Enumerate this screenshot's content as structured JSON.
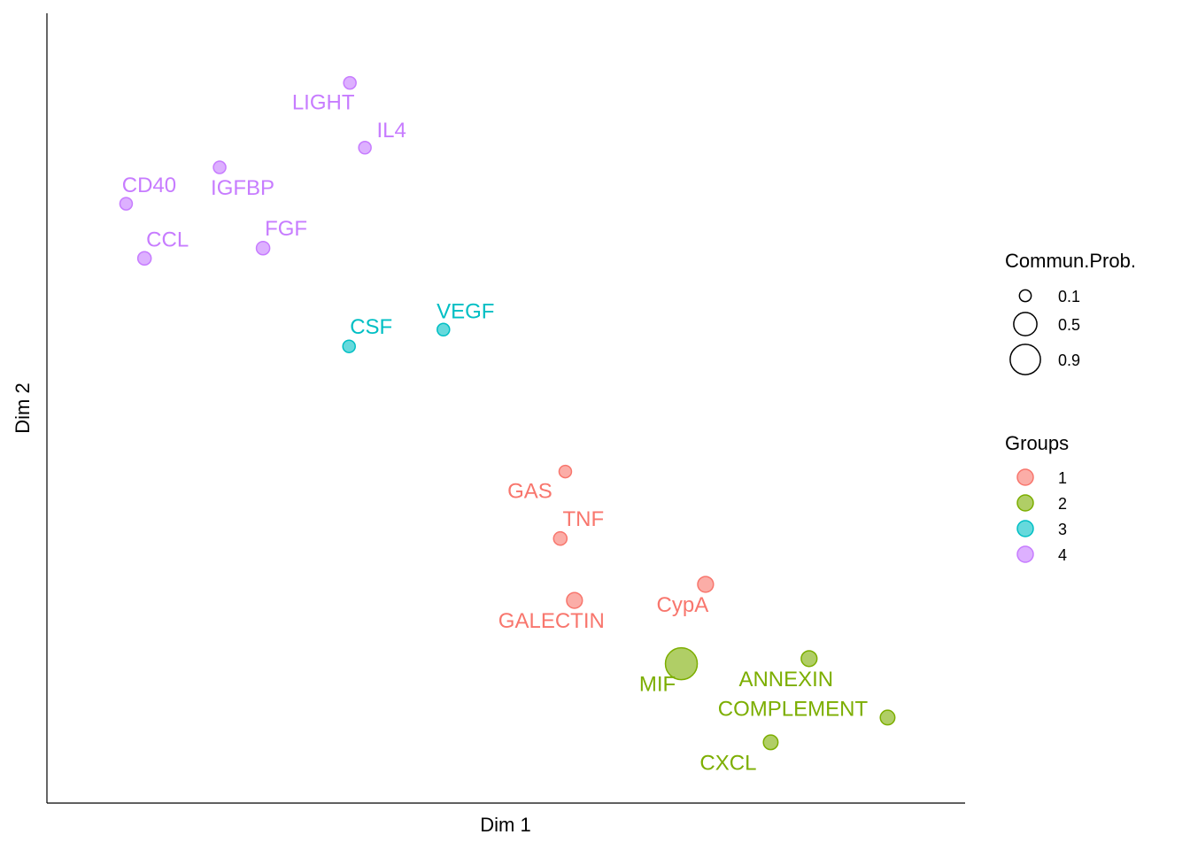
{
  "chart_data": {
    "type": "scatter",
    "xlabel": "Dim 1",
    "ylabel": "Dim 2",
    "xlim": [
      0,
      10
    ],
    "ylim": [
      0,
      10
    ],
    "grid": false,
    "legend_placement": "right",
    "groups": [
      {
        "name": "1",
        "color": "#F8766D"
      },
      {
        "name": "2",
        "color": "#7CAE00"
      },
      {
        "name": "3",
        "color": "#00BFC4"
      },
      {
        "name": "4",
        "color": "#C77CFF"
      }
    ],
    "size_legend": {
      "title": "Commun.Prob.",
      "values": [
        0.1,
        0.5,
        0.9
      ]
    },
    "color_legend": {
      "title": "Groups"
    },
    "points": [
      {
        "label": "LIGHT",
        "x": 3.13,
        "y": 9.53,
        "group": "4",
        "prob": 0.1,
        "lx": -30,
        "ly": 30
      },
      {
        "label": "IL4",
        "x": 3.31,
        "y": 8.64,
        "group": "4",
        "prob": 0.1,
        "lx": 30,
        "ly": -12
      },
      {
        "label": "IGFBP",
        "x": 1.57,
        "y": 8.37,
        "group": "4",
        "prob": 0.1,
        "lx": 26,
        "ly": 31
      },
      {
        "label": "CD40",
        "x": 0.45,
        "y": 7.87,
        "group": "4",
        "prob": 0.1,
        "lx": 26,
        "ly": -13
      },
      {
        "label": "CCL",
        "x": 0.67,
        "y": 7.12,
        "group": "4",
        "prob": 0.12,
        "lx": 26,
        "ly": -13
      },
      {
        "label": "FGF",
        "x": 2.09,
        "y": 7.26,
        "group": "4",
        "prob": 0.12,
        "lx": 26,
        "ly": -14
      },
      {
        "label": "CSF",
        "x": 3.12,
        "y": 5.91,
        "group": "3",
        "prob": 0.1,
        "lx": 25,
        "ly": -14
      },
      {
        "label": "VEGF",
        "x": 4.25,
        "y": 6.14,
        "group": "3",
        "prob": 0.1,
        "lx": 25,
        "ly": -13
      },
      {
        "label": "GAS",
        "x": 5.71,
        "y": 4.19,
        "group": "1",
        "prob": 0.1,
        "lx": -40,
        "ly": 30
      },
      {
        "label": "TNF",
        "x": 5.65,
        "y": 3.27,
        "group": "1",
        "prob": 0.12,
        "lx": 26,
        "ly": -14
      },
      {
        "label": "GALECTIN",
        "x": 5.82,
        "y": 2.42,
        "group": "1",
        "prob": 0.18,
        "lx": -26,
        "ly": 31
      },
      {
        "label": "CypA",
        "x": 7.39,
        "y": 2.64,
        "group": "1",
        "prob": 0.18,
        "lx": -26,
        "ly": 31
      },
      {
        "label": "MIF",
        "x": 7.1,
        "y": 1.55,
        "group": "2",
        "prob": 0.9,
        "lx": -27,
        "ly": 31
      },
      {
        "label": "ANNEXIN",
        "x": 8.63,
        "y": 1.62,
        "group": "2",
        "prob": 0.18,
        "lx": -26,
        "ly": 31
      },
      {
        "label": "COMPLEMENT",
        "x": 9.57,
        "y": 0.81,
        "group": "2",
        "prob": 0.15,
        "lx": -107,
        "ly": -2
      },
      {
        "label": "CXCL",
        "x": 8.17,
        "y": 0.47,
        "group": "2",
        "prob": 0.15,
        "lx": -48,
        "ly": 31
      }
    ]
  }
}
